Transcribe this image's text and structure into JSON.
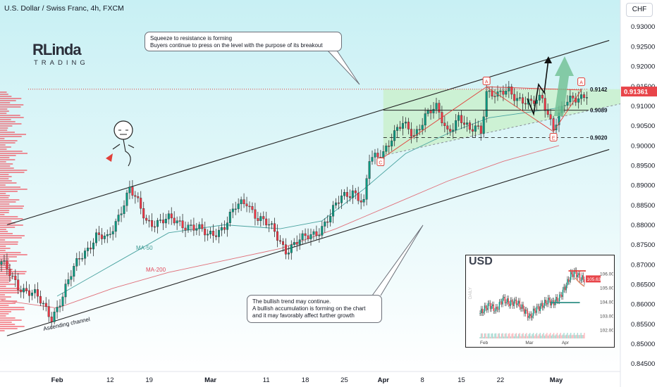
{
  "header": {
    "title": "U.S. Dollar / Swiss Franc, 4h, FXCM",
    "currency": "CHF"
  },
  "logo": {
    "main": "RLinda",
    "sub": "TRADING"
  },
  "colors": {
    "bull": "#089981",
    "bear": "#f23645",
    "accent_red": "#e0403a",
    "price_label": "#e8454a",
    "zone_fill": "#c7efc4",
    "bg_gradient_top": "#c8f0f4",
    "bg_gradient_bottom": "#ffffff",
    "arrow_green": "#6fbf92"
  },
  "chart_data": {
    "type": "candlestick",
    "symbol": "USDCHF",
    "timeframe": "4h",
    "ylim": [
      0.843,
      0.9335
    ],
    "y_ticks": [
      "0.93000",
      "0.92500",
      "0.92000",
      "0.91500",
      "0.91000",
      "0.90500",
      "0.90000",
      "0.89500",
      "0.89000",
      "0.88500",
      "0.88000",
      "0.87500",
      "0.87000",
      "0.86500",
      "0.86000",
      "0.85500",
      "0.85000",
      "0.84500"
    ],
    "x_ticks": [
      "Feb",
      "12",
      "19",
      "Mar",
      "11",
      "18",
      "25",
      "Apr",
      "8",
      "15",
      "22",
      "May"
    ],
    "price_path": [
      [
        0,
        0.87
      ],
      [
        6,
        0.865
      ],
      [
        12,
        0.862
      ],
      [
        18,
        0.857
      ],
      [
        22,
        0.862
      ],
      [
        28,
        0.872
      ],
      [
        34,
        0.877
      ],
      [
        38,
        0.876
      ],
      [
        44,
        0.886
      ],
      [
        46,
        0.889
      ],
      [
        52,
        0.881
      ],
      [
        60,
        0.881
      ],
      [
        68,
        0.88
      ],
      [
        74,
        0.877
      ],
      [
        80,
        0.88
      ],
      [
        84,
        0.884
      ],
      [
        88,
        0.886
      ],
      [
        92,
        0.882
      ],
      [
        98,
        0.878
      ],
      [
        102,
        0.874
      ],
      [
        108,
        0.876
      ],
      [
        114,
        0.879
      ],
      [
        118,
        0.882
      ],
      [
        122,
        0.887
      ],
      [
        126,
        0.889
      ],
      [
        130,
        0.885
      ],
      [
        132,
        0.896
      ],
      [
        136,
        0.898
      ],
      [
        140,
        0.902
      ],
      [
        144,
        0.905
      ],
      [
        148,
        0.903
      ],
      [
        152,
        0.9075
      ],
      [
        156,
        0.909
      ],
      [
        160,
        0.904
      ],
      [
        164,
        0.907
      ],
      [
        168,
        0.903
      ],
      [
        170,
        0.905
      ],
      [
        172,
        0.904
      ],
      [
        174,
        0.914
      ],
      [
        178,
        0.912
      ],
      [
        182,
        0.914
      ],
      [
        186,
        0.912
      ],
      [
        190,
        0.91
      ],
      [
        194,
        0.912
      ],
      [
        198,
        0.905
      ],
      [
        202,
        0.91
      ],
      [
        206,
        0.912
      ],
      [
        210,
        0.9136
      ]
    ],
    "ma50": [
      [
        20,
        0.862
      ],
      [
        40,
        0.87
      ],
      [
        60,
        0.878
      ],
      [
        80,
        0.88
      ],
      [
        100,
        0.879
      ],
      [
        115,
        0.881
      ],
      [
        130,
        0.889
      ],
      [
        145,
        0.898
      ],
      [
        160,
        0.903
      ],
      [
        175,
        0.907
      ],
      [
        190,
        0.9085
      ],
      [
        200,
        0.9095
      ]
    ],
    "ma200": [
      [
        0,
        0.861
      ],
      [
        20,
        0.859
      ],
      [
        40,
        0.864
      ],
      [
        60,
        0.868
      ],
      [
        80,
        0.871
      ],
      [
        100,
        0.874
      ],
      [
        120,
        0.879
      ],
      [
        140,
        0.885
      ],
      [
        160,
        0.891
      ],
      [
        180,
        0.896
      ],
      [
        200,
        0.9
      ]
    ],
    "channel": {
      "upper": [
        [
          2,
          0.88
        ],
        [
          218,
          0.9265
        ]
      ],
      "lower": [
        [
          2,
          0.852
        ],
        [
          218,
          0.899
        ]
      ]
    },
    "levels": [
      {
        "label": "0.9142",
        "value": 0.9142,
        "style": "dotted"
      },
      {
        "label": "0.9089",
        "value": 0.9089,
        "style": "solid"
      },
      {
        "label": "0.9020",
        "value": 0.902,
        "style": "dashed"
      }
    ],
    "current_price": "0.91361",
    "annotations": {
      "channel_label": "Ascending channel",
      "ma50_label": "MA-50",
      "ma200_label": "MA-200",
      "markers": [
        "C",
        "A",
        "E"
      ]
    }
  },
  "callouts": {
    "top": [
      "Squeeze to resistance is forming",
      "Buyers continue to press on the level with the purpose of its breakout"
    ],
    "bottom": [
      "The bullish trend may continue.",
      "A bullish accumulation is forming on the chart",
      "and it may favorably affect further growth"
    ]
  },
  "inset": {
    "title": "USD",
    "y_label": "DAILY",
    "y_ticks": [
      "106.00",
      "105.00",
      "104.00",
      "103.00",
      "102.00"
    ],
    "x_ticks": [
      "Feb",
      "Mar",
      "Apr"
    ],
    "price_label": "105.63",
    "ylim": [
      101.7,
      106.5
    ],
    "price_path": [
      [
        0,
        103.2
      ],
      [
        8,
        103.8
      ],
      [
        14,
        103.4
      ],
      [
        20,
        104.2
      ],
      [
        26,
        103.9
      ],
      [
        32,
        104.0
      ],
      [
        38,
        103.5
      ],
      [
        44,
        102.9
      ],
      [
        48,
        103.4
      ],
      [
        54,
        103.7
      ],
      [
        60,
        104.1
      ],
      [
        64,
        103.9
      ],
      [
        70,
        104.3
      ],
      [
        76,
        105.2
      ],
      [
        80,
        105.9
      ],
      [
        84,
        106.1
      ],
      [
        88,
        105.7
      ],
      [
        92,
        105.6
      ]
    ]
  }
}
